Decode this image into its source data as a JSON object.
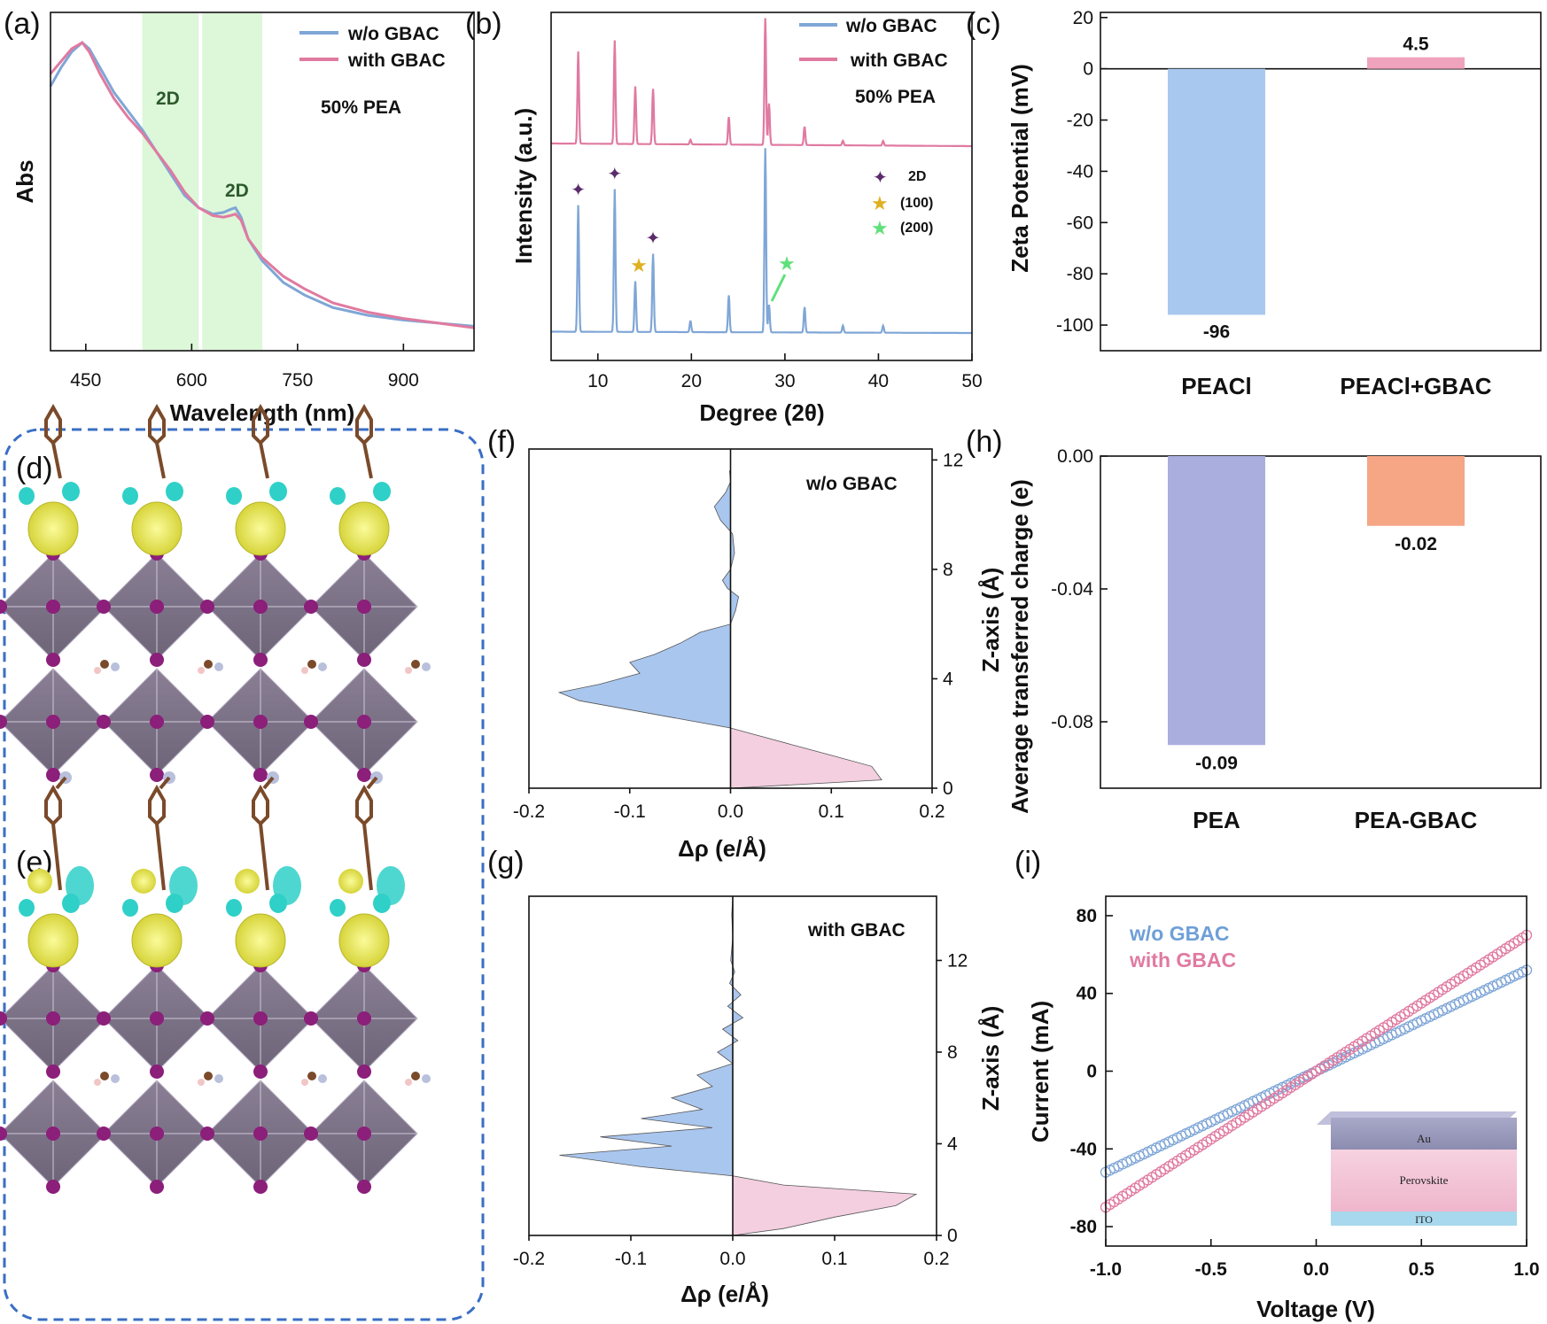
{
  "panels": {
    "a": "(a)",
    "b": "(b)",
    "c": "(c)",
    "d": "(d)",
    "e": "(e)",
    "f": "(f)",
    "g": "(g)",
    "h": "(h)",
    "i": "(i)"
  },
  "colors": {
    "wo": "#7fa6d6",
    "with": "#e07aa0",
    "pink_bar": "#f0a3bd",
    "blue_bar": "#a9c8ef",
    "purple_bar": "#a9aede",
    "orange_bar": "#f6a585",
    "green_band": "#d4f5cf",
    "fill_blue": "#a9c6ee",
    "fill_pink": "#f3cfe0"
  },
  "chart_data": [
    {
      "id": "a",
      "type": "line",
      "xlabel": "Wavelength (nm)",
      "ylabel": "Abs",
      "xlim": [
        400,
        1000
      ],
      "xticks": [
        450,
        600,
        750,
        900
      ],
      "legend": [
        "w/o GBAC",
        "with GBAC"
      ],
      "legend_position": "top-right",
      "annotations": [
        "2D",
        "2D",
        "50% PEA"
      ],
      "shaded_bands": [
        [
          530,
          610
        ],
        [
          615,
          700
        ]
      ],
      "series": [
        {
          "name": "w/o GBAC",
          "x": [
            400,
            415,
            430,
            445,
            455,
            470,
            490,
            510,
            530,
            550,
            570,
            590,
            610,
            630,
            645,
            655,
            662,
            670,
            680,
            700,
            730,
            760,
            800,
            850,
            900,
            950,
            1000
          ],
          "y": [
            0.82,
            0.88,
            0.93,
            0.96,
            0.94,
            0.88,
            0.8,
            0.74,
            0.68,
            0.61,
            0.54,
            0.47,
            0.43,
            0.41,
            0.415,
            0.425,
            0.43,
            0.4,
            0.33,
            0.26,
            0.19,
            0.15,
            0.11,
            0.085,
            0.07,
            0.06,
            0.05
          ]
        },
        {
          "name": "with GBAC",
          "x": [
            400,
            415,
            430,
            445,
            455,
            470,
            490,
            510,
            530,
            550,
            570,
            590,
            610,
            630,
            645,
            655,
            662,
            670,
            680,
            700,
            730,
            760,
            800,
            850,
            900,
            950,
            1000
          ],
          "y": [
            0.86,
            0.9,
            0.94,
            0.96,
            0.93,
            0.86,
            0.78,
            0.72,
            0.67,
            0.61,
            0.55,
            0.48,
            0.43,
            0.405,
            0.4,
            0.405,
            0.41,
            0.39,
            0.33,
            0.27,
            0.21,
            0.17,
            0.125,
            0.095,
            0.075,
            0.06,
            0.045
          ]
        }
      ]
    },
    {
      "id": "b",
      "type": "line",
      "xlabel": "Degree (2θ)",
      "ylabel": "Intensity (a.u.)",
      "xlim": [
        5,
        50
      ],
      "xticks": [
        10,
        20,
        30,
        40,
        50
      ],
      "legend": [
        "w/o GBAC",
        "with GBAC"
      ],
      "legend_position": "top-right",
      "annotations": [
        "50% PEA"
      ],
      "marker_legend": [
        "2D",
        "(100)",
        "(200)"
      ],
      "peaks_deg": [
        7.9,
        11.8,
        14.0,
        15.9,
        19.9,
        24.0,
        27.9,
        28.3,
        32.1,
        36.2,
        40.5
      ],
      "series": [
        {
          "name": "with GBAC",
          "heights": [
            0.4,
            0.45,
            0.25,
            0.24,
            0.02,
            0.12,
            0.55,
            0.18,
            0.08,
            0.02,
            0.02
          ]
        },
        {
          "name": "w/o GBAC",
          "heights": [
            0.55,
            0.62,
            0.22,
            0.34,
            0.05,
            0.16,
            0.8,
            0.12,
            0.11,
            0.03,
            0.03
          ]
        }
      ]
    },
    {
      "id": "c",
      "type": "bar",
      "ylabel": "Zeta Potential (mV)",
      "ylim": [
        -110,
        22
      ],
      "yticks": [
        20,
        0,
        -20,
        -40,
        -60,
        -80,
        -100
      ],
      "categories": [
        "PEACl",
        "PEACl+GBAC"
      ],
      "values": [
        -96,
        4.5
      ],
      "value_labels": [
        "-96",
        "4.5"
      ]
    },
    {
      "id": "f",
      "type": "area",
      "xlabel": "Δρ  (e/Å)",
      "ylabel": "Z-axis (Å)",
      "xlim": [
        -0.2,
        0.2
      ],
      "ylim": [
        0,
        12.4
      ],
      "xticks": [
        -0.2,
        -0.1,
        0.0,
        0.1,
        0.2
      ],
      "yticks": [
        0,
        4,
        8,
        12
      ],
      "legend": [
        "w/o GBAC"
      ],
      "series": [
        {
          "z": [
            0,
            0.3,
            0.8,
            1.2,
            1.6,
            2.0,
            2.2
          ],
          "drho": [
            0,
            0.15,
            0.14,
            0.1,
            0.06,
            0.02,
            0
          ],
          "sign": "positive"
        },
        {
          "z": [
            2.2,
            2.6,
            3.2,
            3.5,
            3.8,
            4.2,
            4.6,
            4.9,
            5.3,
            5.7,
            6.0,
            6.5,
            7.0,
            7.3,
            7.6,
            8.0,
            8.6,
            9.3,
            9.8,
            10.3,
            10.8,
            11.2,
            11.6
          ],
          "drho": [
            0,
            -0.06,
            -0.15,
            -0.17,
            -0.13,
            -0.09,
            -0.1,
            -0.075,
            -0.05,
            -0.03,
            0,
            0.005,
            0.008,
            -0.003,
            -0.008,
            0,
            0.004,
            0.002,
            -0.01,
            -0.016,
            -0.005,
            0,
            -0.001
          ],
          "sign": "negative"
        }
      ]
    },
    {
      "id": "g",
      "type": "area",
      "xlabel": "Δρ  (e/Å)",
      "ylabel": "Z-axis (Å)",
      "xlim": [
        -0.2,
        0.2
      ],
      "ylim": [
        0,
        14.8
      ],
      "xticks": [
        -0.2,
        -0.1,
        0.0,
        0.1,
        0.2
      ],
      "yticks": [
        0,
        4,
        8,
        12
      ],
      "legend": [
        "with GBAC"
      ],
      "series": [
        {
          "z": [
            0,
            0.3,
            0.8,
            1.3,
            1.8,
            2.2,
            2.6
          ],
          "drho": [
            0,
            0.05,
            0.1,
            0.16,
            0.18,
            0.05,
            0
          ],
          "sign": "positive"
        },
        {
          "z": [
            2.6,
            3.0,
            3.5,
            3.9,
            4.3,
            4.7,
            5.1,
            5.5,
            6.0,
            6.5,
            7.0,
            7.5,
            8.0,
            8.5,
            9.0,
            9.5,
            10.0,
            10.5,
            11.0,
            11.5,
            12.0,
            13,
            14,
            14.8
          ],
          "drho": [
            0,
            -0.09,
            -0.17,
            -0.06,
            -0.13,
            -0.02,
            -0.09,
            -0.03,
            -0.06,
            -0.02,
            -0.035,
            0,
            -0.015,
            0.005,
            -0.01,
            0.01,
            -0.005,
            0.008,
            -0.003,
            0.002,
            -0.002,
            0,
            -0.001,
            0
          ],
          "sign": "negative"
        }
      ]
    },
    {
      "id": "h",
      "type": "bar",
      "ylabel": "Average transferred charge (e)",
      "ylim": [
        -0.1,
        0.0
      ],
      "yticks": [
        0.0,
        -0.04,
        -0.08
      ],
      "categories": [
        "PEA",
        "PEA-GBAC"
      ],
      "values": [
        -0.087,
        -0.021
      ],
      "value_labels": [
        "-0.09",
        "-0.02"
      ]
    },
    {
      "id": "i",
      "type": "scatter",
      "xlabel": "Voltage (V)",
      "ylabel": "Current (mA)",
      "xlim": [
        -1.0,
        1.0
      ],
      "ylim": [
        -90,
        90
      ],
      "xticks": [
        -1.0,
        -0.5,
        0.0,
        0.5,
        1.0
      ],
      "yticks": [
        -80,
        -40,
        0,
        40,
        80
      ],
      "legend": [
        "w/o GBAC",
        "with GBAC"
      ],
      "legend_position": "top-left",
      "inset_layers": [
        "Au",
        "Perovskite",
        "ITO"
      ],
      "series": [
        {
          "name": "w/o GBAC",
          "slope": 52,
          "intercept": 0
        },
        {
          "name": "with GBAC",
          "slope": 70,
          "intercept": 0
        }
      ]
    }
  ]
}
